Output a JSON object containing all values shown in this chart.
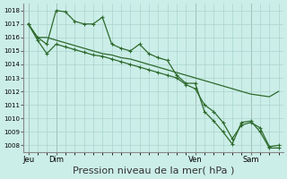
{
  "bg_color": "#cceee8",
  "grid_color": "#aad4ce",
  "line_color": "#2d6a2d",
  "xlabel": "Pression niveau de la mer( hPa )",
  "xlabel_fontsize": 8,
  "ylim": [
    1007.5,
    1018.5
  ],
  "yticks": [
    1008,
    1009,
    1010,
    1011,
    1012,
    1013,
    1014,
    1015,
    1016,
    1017,
    1018
  ],
  "xtick_labels": [
    "Jeu",
    "Dim",
    "Ven",
    "Sam"
  ],
  "xtick_positions": [
    0,
    3,
    18,
    24
  ],
  "total_points": 28,
  "series1": [
    1017.0,
    1016.0,
    1016.0,
    1015.8,
    1015.6,
    1015.4,
    1015.2,
    1015.0,
    1014.8,
    1014.7,
    1014.5,
    1014.4,
    1014.2,
    1014.0,
    1013.8,
    1013.6,
    1013.4,
    1013.2,
    1013.0,
    1012.8,
    1012.6,
    1012.4,
    1012.2,
    1012.0,
    1011.8,
    1011.7,
    1011.6,
    1012.0
  ],
  "series2": [
    1017.0,
    1016.0,
    1015.5,
    1018.0,
    1017.9,
    1017.2,
    1017.0,
    1017.0,
    1017.5,
    1015.5,
    1015.2,
    1015.0,
    1015.5,
    1014.8,
    1014.5,
    1014.3,
    1013.2,
    1012.6,
    1012.6,
    1010.5,
    1009.8,
    1009.0,
    1008.1,
    1009.7,
    1009.8,
    1009.0,
    1007.8,
    1007.8
  ],
  "series3": [
    1017.0,
    1015.8,
    1014.8,
    1015.5,
    1015.3,
    1015.1,
    1014.9,
    1014.7,
    1014.6,
    1014.4,
    1014.2,
    1014.0,
    1013.8,
    1013.6,
    1013.4,
    1013.2,
    1013.0,
    1012.5,
    1012.2,
    1011.0,
    1010.5,
    1009.7,
    1008.5,
    1009.5,
    1009.7,
    1009.3,
    1007.9,
    1008.0
  ]
}
